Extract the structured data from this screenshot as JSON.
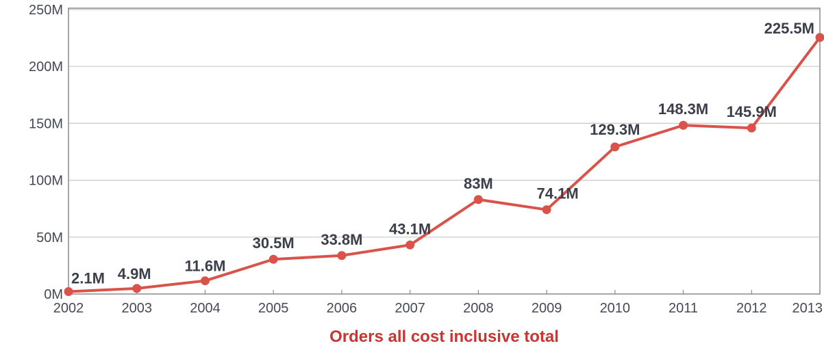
{
  "chart_data": {
    "type": "line",
    "categories": [
      "2002",
      "2003",
      "2004",
      "2005",
      "2006",
      "2007",
      "2008",
      "2009",
      "2010",
      "2011",
      "2012",
      "2013"
    ],
    "series": [
      {
        "values": [
          2.1,
          4.9,
          11.6,
          30.5,
          33.8,
          43.1,
          83,
          74.1,
          129.3,
          148.3,
          145.9,
          225.5
        ],
        "data_labels": [
          "2.1M",
          "4.9M",
          "11.6M",
          "30.5M",
          "33.8M",
          "43.1M",
          "83M",
          "74.1M",
          "129.3M",
          "148.3M",
          "145.9M",
          "225.5M"
        ],
        "color": "#d9534a"
      }
    ],
    "title": "",
    "xlabel": "Orders all cost inclusive total",
    "ylabel": "",
    "ylim": [
      0,
      250
    ],
    "y_ticks": [
      0,
      50,
      100,
      150,
      200,
      250
    ],
    "y_tick_labels": [
      "0M",
      "50M",
      "100M",
      "150M",
      "200M",
      "250M"
    ],
    "grid": true,
    "legend": "none"
  }
}
